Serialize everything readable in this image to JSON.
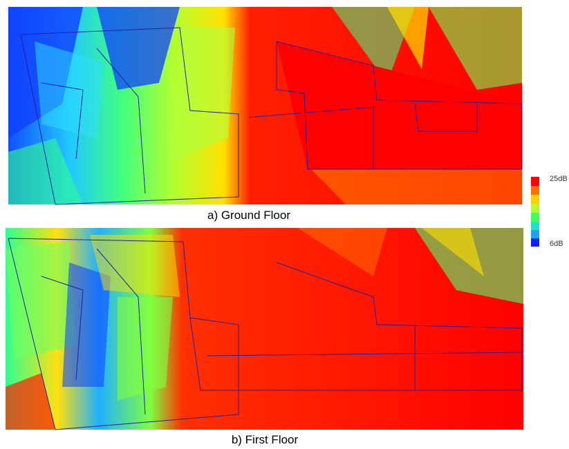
{
  "figure": {
    "panels": [
      {
        "caption": "a) Ground Floor"
      },
      {
        "caption": "b) First Floor"
      }
    ],
    "legend": {
      "max_label": "25dB",
      "min_label": "6dB"
    }
  }
}
